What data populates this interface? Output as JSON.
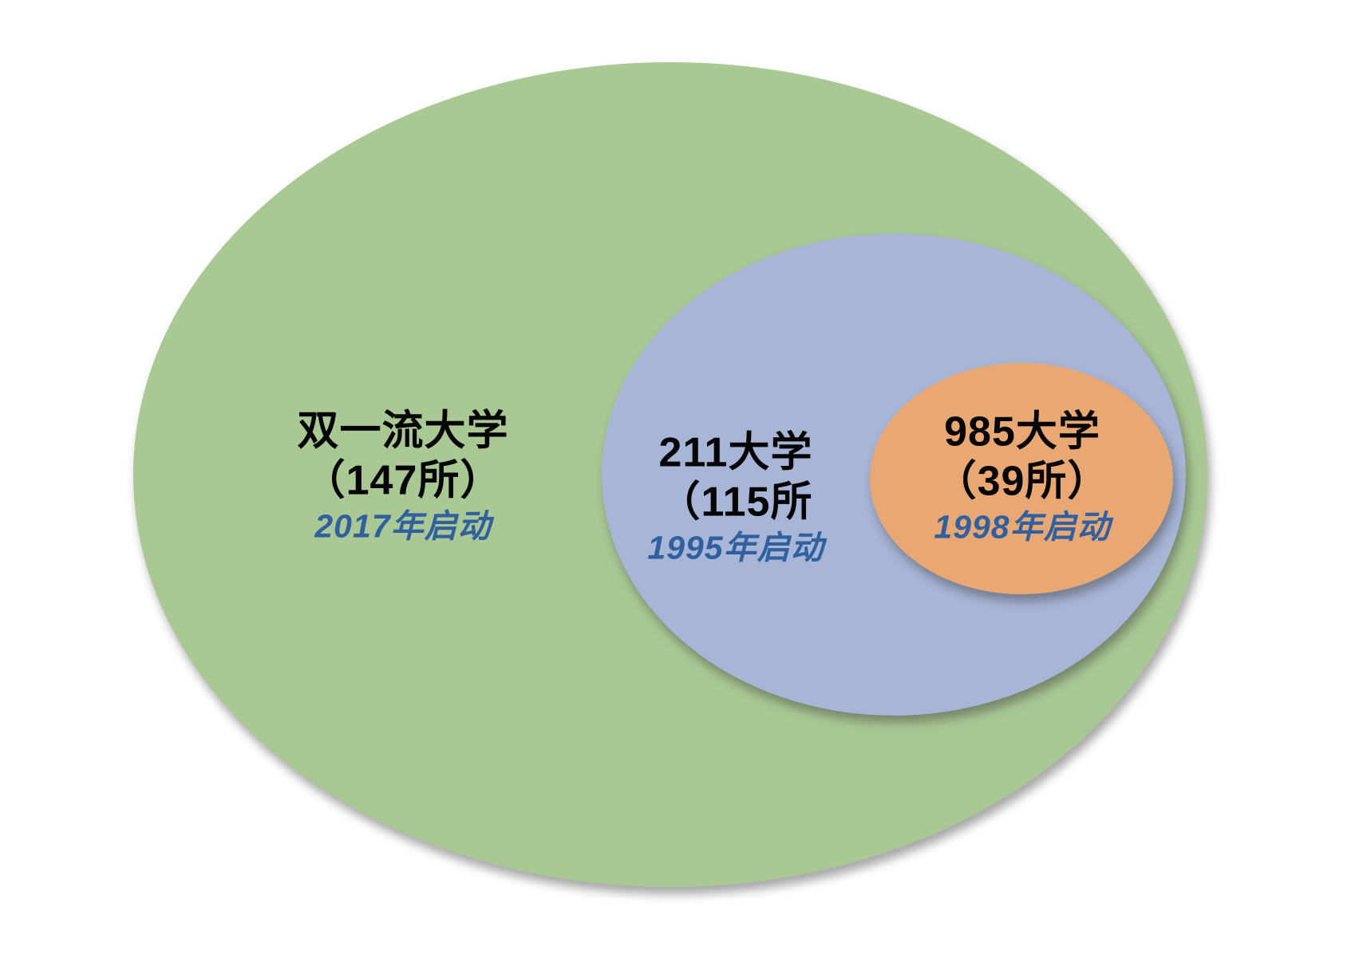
{
  "diagram": {
    "type": "nested-venn",
    "background": "#ffffff",
    "title_color": "#050505",
    "note_color": "#31609F",
    "sets": [
      {
        "id": "double-first-class",
        "name": "双一流大学",
        "count": "（147所）",
        "note": "2017年启动",
        "fill": "#A9C894"
      },
      {
        "id": "project-211",
        "name": "211大学",
        "count": "（115所",
        "note": "1995年启动",
        "fill": "#A7B5D6"
      },
      {
        "id": "project-985",
        "name": "985大学",
        "count": "（39所）",
        "note": "1998年启动",
        "fill": "#E9A873"
      }
    ]
  }
}
